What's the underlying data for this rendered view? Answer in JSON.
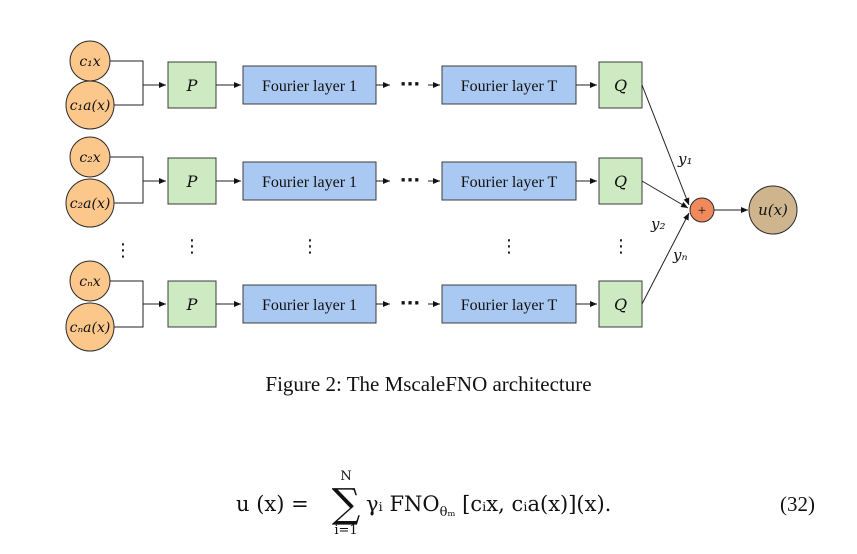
{
  "diagram": {
    "rows": [
      {
        "in_x": "c₁x",
        "in_a": "c₁a(x)",
        "p": "P",
        "f1": "Fourier layer 1",
        "fT": "Fourier layer T",
        "q": "Q",
        "y": "y₁"
      },
      {
        "in_x": "c₂x",
        "in_a": "c₂a(x)",
        "p": "P",
        "f1": "Fourier layer 1",
        "fT": "Fourier layer T",
        "q": "Q",
        "y": "y₂"
      },
      {
        "in_x": "cₙx",
        "in_a": "cₙa(x)",
        "p": "P",
        "f1": "Fourier layer 1",
        "fT": "Fourier layer T",
        "q": "Q",
        "y": "yₙ"
      }
    ],
    "plus": "+",
    "output": "u(x)",
    "ellipsis_h": "···",
    "ellipsis_v": "⋮"
  },
  "caption": "Figure 2: The MscaleFNO architecture",
  "equation": {
    "lhs": "u (x) =",
    "sum_upper": "N",
    "sum_symbol": "∑",
    "sum_lower": "i=1",
    "rhs": "γᵢ FNO",
    "subscript": "θₘ",
    "args": "[cᵢx, cᵢa(x)](x).",
    "number": "(32)"
  }
}
